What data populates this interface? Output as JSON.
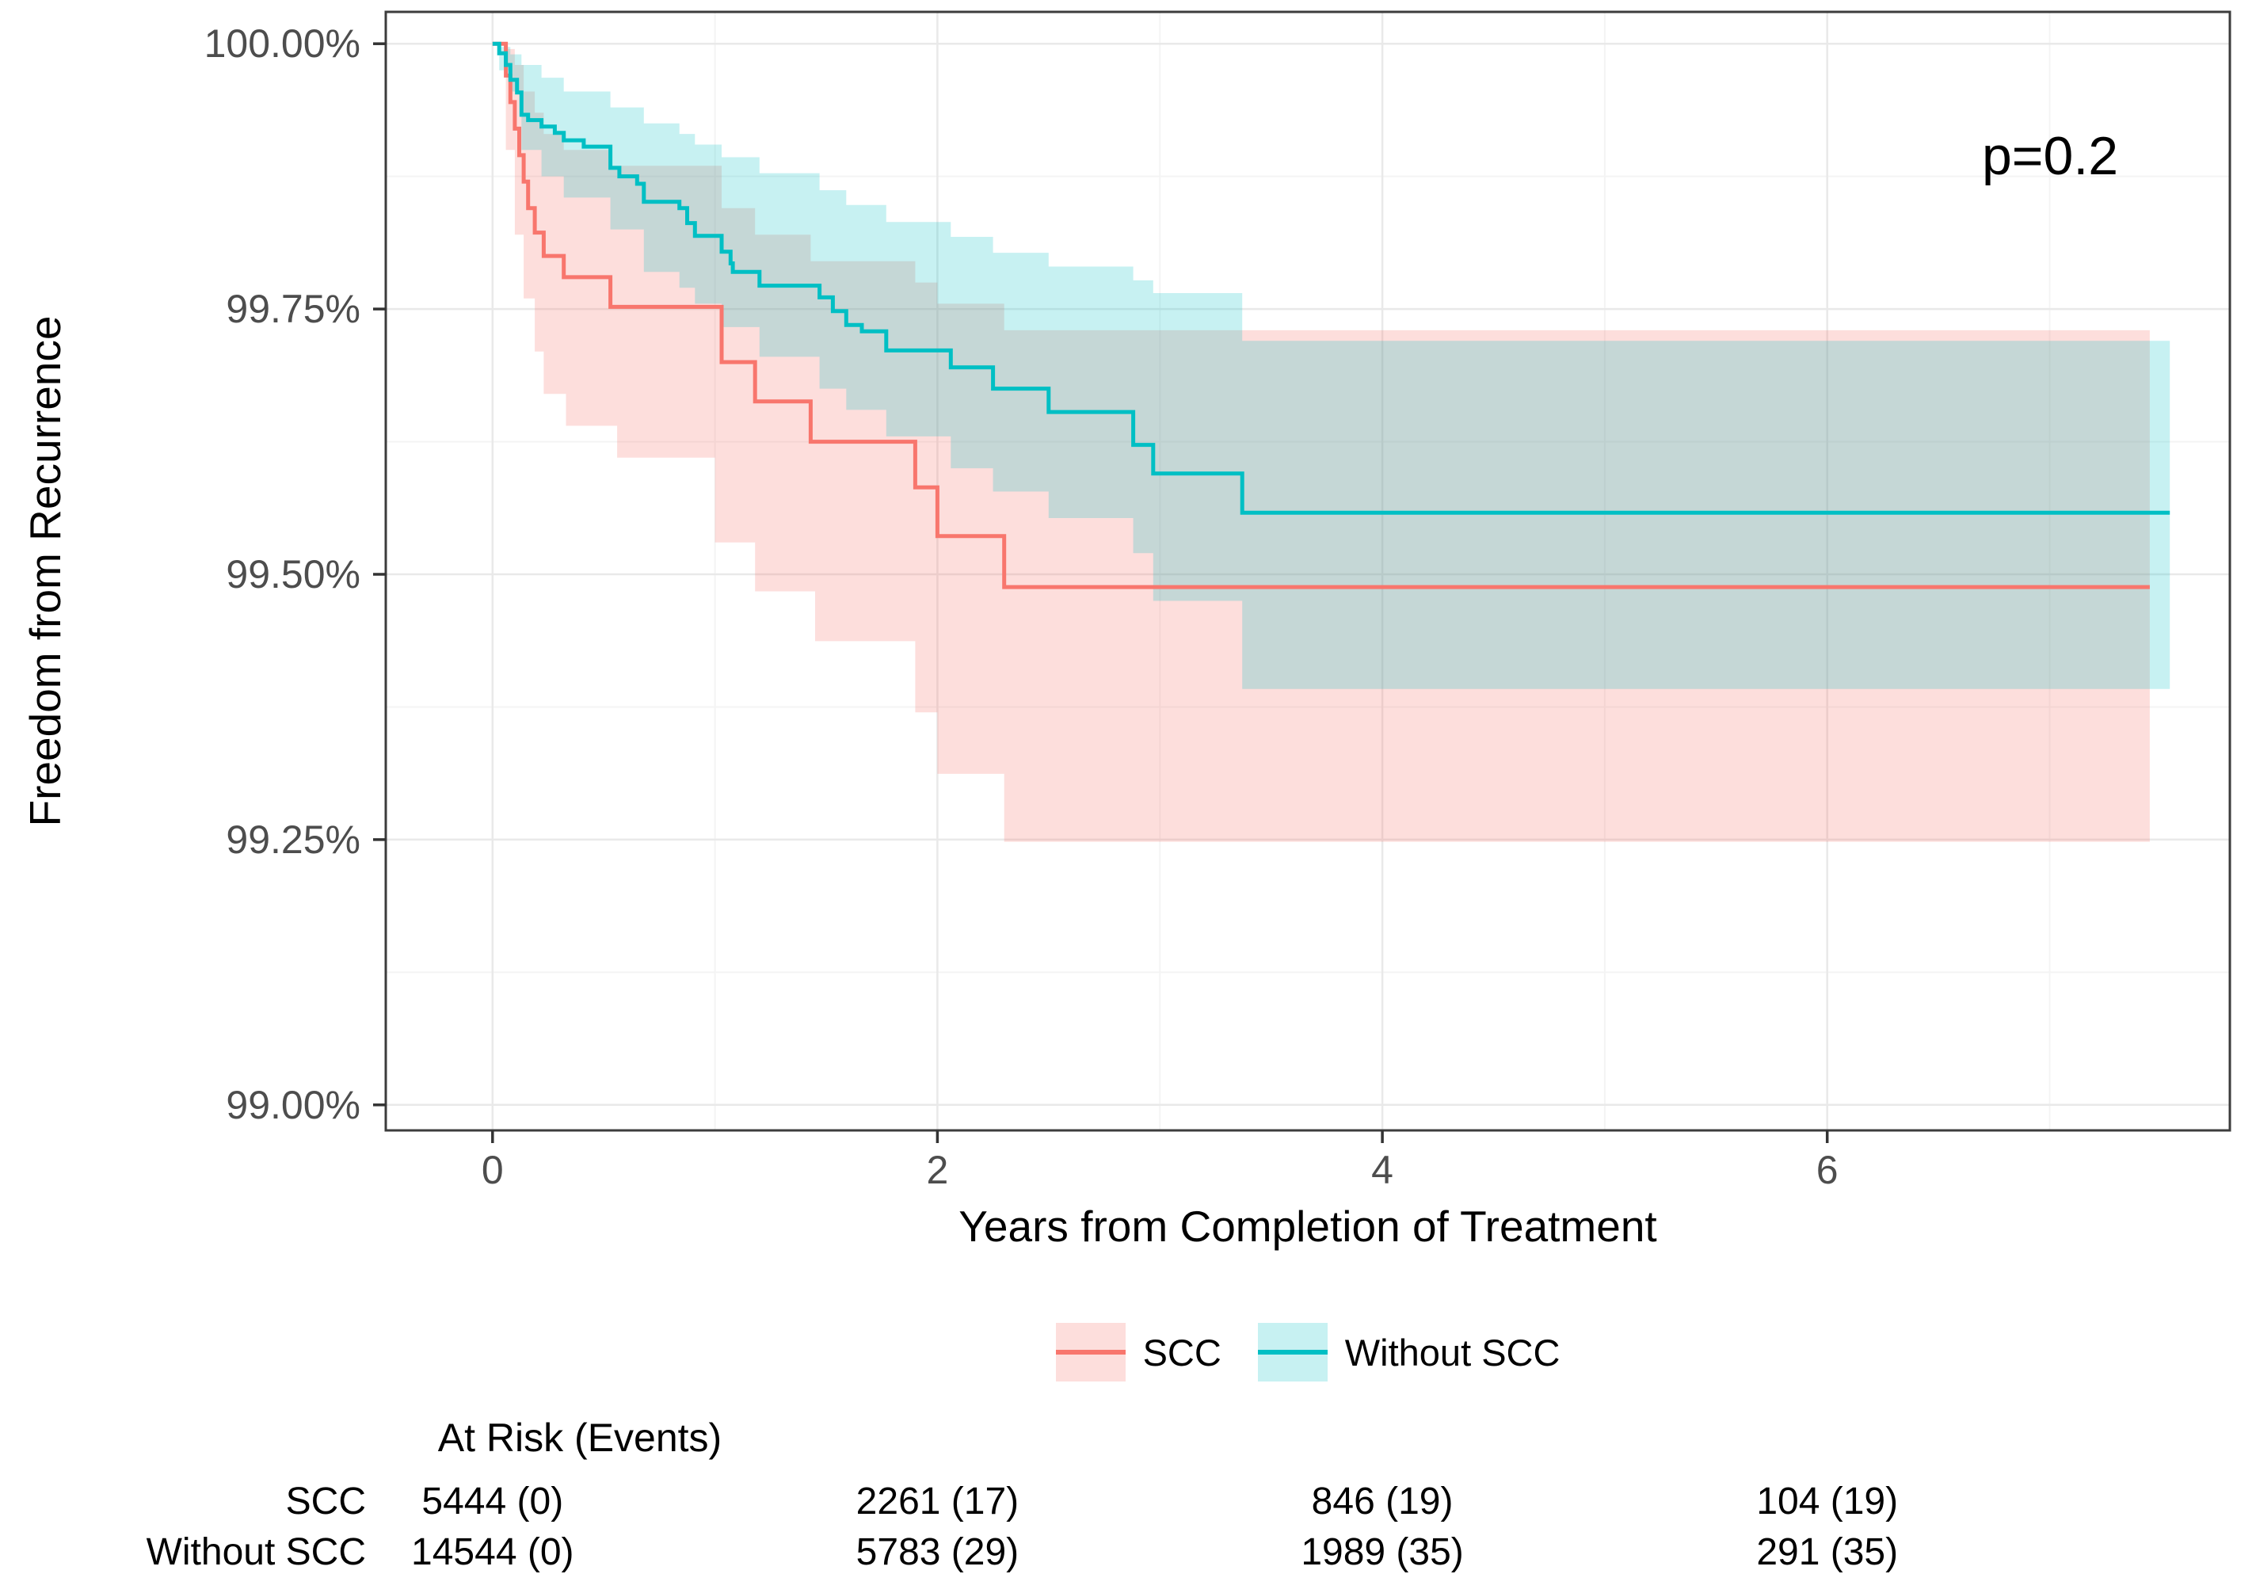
{
  "colors": {
    "scc_line": "#F8766D",
    "scc_fill": "rgba(248,118,109,0.24)",
    "without_scc_line": "#00BFC4",
    "without_scc_fill": "rgba(0,191,196,0.22)",
    "grid_major": "#e9e9e9",
    "grid_minor": "#f4f4f4",
    "panel_border": "#3c3c3c",
    "tick_mark": "#333333",
    "tick_label": "#4d4d4d"
  },
  "chart_data": {
    "type": "line",
    "subtype": "kaplan-meier-step",
    "title": "",
    "xlabel": "Years from Completion of Treatment",
    "ylabel": "Freedom from Recurrence",
    "p_annotation": "p=0.2",
    "x_domain": [
      -0.48,
      7.81
    ],
    "y_domain": [
      98.976,
      100.03
    ],
    "x_ticks": {
      "values": [
        0,
        2,
        4,
        6
      ],
      "labels": [
        "0",
        "2",
        "4",
        "6"
      ]
    },
    "x_minor": [
      1,
      3,
      5,
      7
    ],
    "y_ticks": {
      "values": [
        100.0,
        99.75,
        99.5,
        99.25,
        99.0
      ],
      "labels": [
        "100.00%",
        "99.75%",
        "99.50%",
        "99.25%",
        "99.00%"
      ]
    },
    "y_minor": [
      99.875,
      99.625,
      99.375,
      99.125
    ],
    "grid": true,
    "legend_position": "bottom",
    "series": [
      {
        "name": "SCC",
        "color": "#F8766D",
        "fill": "rgba(248,118,109,0.24)",
        "end_time": 7.45,
        "steps": [
          [
            0,
            100
          ],
          [
            0.06,
            99.97
          ],
          [
            0.08,
            99.945
          ],
          [
            0.1,
            99.92
          ],
          [
            0.12,
            99.895
          ],
          [
            0.14,
            99.87
          ],
          [
            0.16,
            99.845
          ],
          [
            0.19,
            99.822
          ],
          [
            0.23,
            99.8
          ],
          [
            0.32,
            99.78
          ],
          [
            0.53,
            99.752
          ],
          [
            1.03,
            99.7
          ],
          [
            1.18,
            99.663
          ],
          [
            1.43,
            99.625
          ],
          [
            1.9,
            99.582
          ],
          [
            2.0,
            99.536
          ],
          [
            2.3,
            99.488
          ]
        ],
        "ci_upper": [
          [
            0,
            100
          ],
          [
            0.06,
            99.995
          ],
          [
            0.1,
            99.98
          ],
          [
            0.14,
            99.955
          ],
          [
            0.19,
            99.935
          ],
          [
            0.23,
            99.915
          ],
          [
            0.32,
            99.9
          ],
          [
            0.53,
            99.885
          ],
          [
            1.03,
            99.845
          ],
          [
            1.18,
            99.82
          ],
          [
            1.43,
            99.795
          ],
          [
            1.9,
            99.775
          ],
          [
            2.0,
            99.755
          ],
          [
            2.3,
            99.73
          ]
        ],
        "ci_lower": [
          [
            0,
            100
          ],
          [
            0.06,
            99.9
          ],
          [
            0.1,
            99.82
          ],
          [
            0.14,
            99.76
          ],
          [
            0.19,
            99.71
          ],
          [
            0.23,
            99.67
          ],
          [
            0.33,
            99.64
          ],
          [
            0.56,
            99.61
          ],
          [
            1.0,
            99.53
          ],
          [
            1.18,
            99.484
          ],
          [
            1.45,
            99.437
          ],
          [
            1.9,
            99.37
          ],
          [
            2.0,
            99.312
          ],
          [
            2.3,
            99.248
          ]
        ]
      },
      {
        "name": "Without SCC",
        "color": "#00BFC4",
        "fill": "rgba(0,191,196,0.22)",
        "end_time": 7.54,
        "steps": [
          [
            0,
            100
          ],
          [
            0.03,
            99.991
          ],
          [
            0.06,
            99.98
          ],
          [
            0.08,
            99.966
          ],
          [
            0.11,
            99.954
          ],
          [
            0.13,
            99.933
          ],
          [
            0.16,
            99.928
          ],
          [
            0.22,
            99.922
          ],
          [
            0.28,
            99.916
          ],
          [
            0.32,
            99.909
          ],
          [
            0.41,
            99.903
          ],
          [
            0.53,
            99.883
          ],
          [
            0.57,
            99.875
          ],
          [
            0.65,
            99.868
          ],
          [
            0.68,
            99.851
          ],
          [
            0.84,
            99.845
          ],
          [
            0.875,
            99.831
          ],
          [
            0.91,
            99.819
          ],
          [
            1.03,
            99.804
          ],
          [
            1.07,
            99.793
          ],
          [
            1.08,
            99.785
          ],
          [
            1.2,
            99.772
          ],
          [
            1.47,
            99.761
          ],
          [
            1.53,
            99.748
          ],
          [
            1.59,
            99.735
          ],
          [
            1.66,
            99.729
          ],
          [
            1.77,
            99.711
          ],
          [
            2.06,
            99.695
          ],
          [
            2.25,
            99.675
          ],
          [
            2.5,
            99.653
          ],
          [
            2.88,
            99.622
          ],
          [
            2.97,
            99.595
          ],
          [
            3.37,
            99.558
          ]
        ],
        "ci_upper": [
          [
            0,
            100
          ],
          [
            0.03,
            99.997
          ],
          [
            0.08,
            99.99
          ],
          [
            0.13,
            99.98
          ],
          [
            0.22,
            99.968
          ],
          [
            0.32,
            99.955
          ],
          [
            0.53,
            99.94
          ],
          [
            0.68,
            99.925
          ],
          [
            0.84,
            99.915
          ],
          [
            0.91,
            99.905
          ],
          [
            1.03,
            99.893
          ],
          [
            1.2,
            99.878
          ],
          [
            1.47,
            99.862
          ],
          [
            1.59,
            99.848
          ],
          [
            1.77,
            99.832
          ],
          [
            2.06,
            99.818
          ],
          [
            2.25,
            99.803
          ],
          [
            2.5,
            99.79
          ],
          [
            2.88,
            99.777
          ],
          [
            2.97,
            99.765
          ],
          [
            3.37,
            99.72
          ]
        ],
        "ci_lower": [
          [
            0,
            100
          ],
          [
            0.03,
            99.975
          ],
          [
            0.08,
            99.955
          ],
          [
            0.13,
            99.9
          ],
          [
            0.22,
            99.875
          ],
          [
            0.32,
            99.855
          ],
          [
            0.53,
            99.825
          ],
          [
            0.68,
            99.785
          ],
          [
            0.84,
            99.77
          ],
          [
            0.91,
            99.755
          ],
          [
            1.03,
            99.733
          ],
          [
            1.2,
            99.705
          ],
          [
            1.47,
            99.675
          ],
          [
            1.59,
            99.655
          ],
          [
            1.77,
            99.63
          ],
          [
            2.06,
            99.6
          ],
          [
            2.25,
            99.578
          ],
          [
            2.5,
            99.553
          ],
          [
            2.88,
            99.52
          ],
          [
            2.97,
            99.475
          ],
          [
            3.37,
            99.392
          ]
        ]
      }
    ],
    "at_risk": {
      "header": "At Risk (Events)",
      "times": [
        0,
        2,
        4,
        6
      ],
      "rows": [
        {
          "label": "SCC",
          "values": [
            "5444 (0)",
            "2261 (17)",
            "846 (19)",
            "104 (19)"
          ]
        },
        {
          "label": "Without SCC",
          "values": [
            "14544 (0)",
            "5783 (29)",
            "1989 (35)",
            "291 (35)"
          ]
        }
      ]
    }
  },
  "layout_text": {
    "legend_scc": "SCC",
    "legend_without_scc": "Without SCC"
  }
}
